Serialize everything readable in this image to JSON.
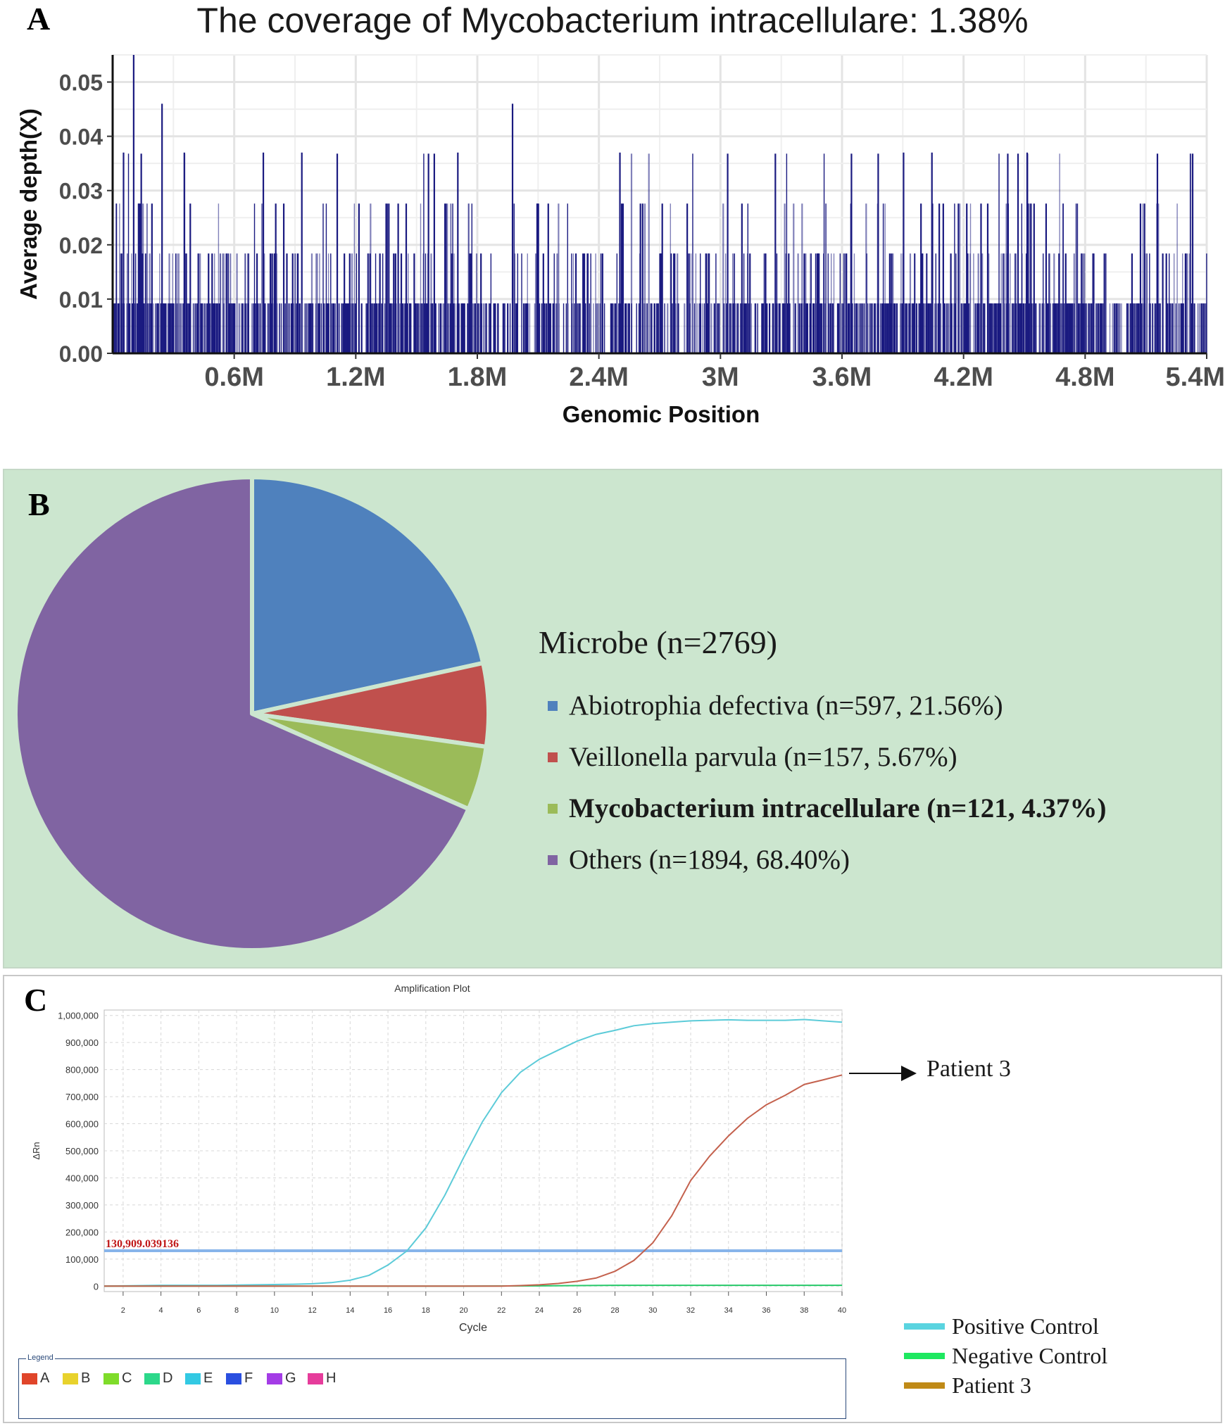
{
  "panels": {
    "a": "A",
    "b": "B",
    "c": "C"
  },
  "chart_data": [
    {
      "type": "bar",
      "title": "The coverage of Mycobacterium intracellulare: 1.38%",
      "xlabel": "Genomic Position",
      "ylabel": "Average depth(X)",
      "xlim": [
        0,
        5400000
      ],
      "ylim": [
        0,
        0.055
      ],
      "x_tick_labels": [
        "0.6M",
        "1.2M",
        "1.8M",
        "2.4M",
        "3M",
        "3.6M",
        "4.2M",
        "4.8M",
        "5.4M"
      ],
      "x_ticks": [
        600000,
        1200000,
        1800000,
        2400000,
        3000000,
        3600000,
        4200000,
        4800000,
        5400000
      ],
      "y_tick_labels": [
        "0.00",
        "0.01",
        "0.02",
        "0.03",
        "0.04",
        "0.05"
      ],
      "y_ticks": [
        0,
        0.01,
        0.02,
        0.03,
        0.04,
        0.05
      ],
      "grid": true,
      "bar_color": "#1a1a80",
      "depth_levels": [
        0.0092,
        0.0184,
        0.0276,
        0.0368,
        0.046,
        0.055
      ],
      "tall_peaks": [
        {
          "x": 100000,
          "y": 0.055
        },
        {
          "x": 240000,
          "y": 0.046
        },
        {
          "x": 930000,
          "y": 0.037
        },
        {
          "x": 1970000,
          "y": 0.046
        },
        {
          "x": 1700000,
          "y": 0.037
        },
        {
          "x": 3900000,
          "y": 0.037
        },
        {
          "x": 4510000,
          "y": 0.037
        },
        {
          "x": 50000,
          "y": 0.037
        },
        {
          "x": 350000,
          "y": 0.037
        },
        {
          "x": 740000,
          "y": 0.037
        },
        {
          "x": 4040000,
          "y": 0.037
        },
        {
          "x": 2500000,
          "y": 0.037
        }
      ],
      "coverage_density": [
        {
          "start": 0,
          "end": 600000,
          "density": 0.55
        },
        {
          "start": 600000,
          "end": 1200000,
          "density": 0.45
        },
        {
          "start": 1200000,
          "end": 1800000,
          "density": 0.5
        },
        {
          "start": 1800000,
          "end": 2400000,
          "density": 0.35
        },
        {
          "start": 2400000,
          "end": 3000000,
          "density": 0.3
        },
        {
          "start": 3000000,
          "end": 3600000,
          "density": 0.45
        },
        {
          "start": 3600000,
          "end": 4200000,
          "density": 0.5
        },
        {
          "start": 4200000,
          "end": 4800000,
          "density": 0.55
        },
        {
          "start": 4800000,
          "end": 5400000,
          "density": 0.45
        }
      ]
    },
    {
      "type": "pie",
      "title": "Microbe (n=2769)",
      "slices": [
        {
          "label": "Abiotrophia defectiva (n=597, 21.56%)",
          "value": 597,
          "percent": 21.56,
          "color": "#4f81bd",
          "bold": false
        },
        {
          "label": "Veillonella parvula (n=157, 5.67%)",
          "value": 157,
          "percent": 5.67,
          "color": "#c0504d",
          "bold": false
        },
        {
          "label": "Mycobacterium intracellulare (n=121, 4.37%)",
          "value": 121,
          "percent": 4.37,
          "color": "#9bbb59",
          "bold": true
        },
        {
          "label": "Others (n=1894, 68.40%)",
          "value": 1894,
          "percent": 68.4,
          "color": "#8064a2",
          "bold": false
        }
      ],
      "start_angle": "12 o'clock, clockwise"
    },
    {
      "type": "line",
      "title": "Amplification Plot",
      "xlabel": "Cycle",
      "ylabel": "ΔRn",
      "xlim": [
        1,
        40
      ],
      "ylim": [
        -20000,
        1020000
      ],
      "x_ticks": [
        2,
        4,
        6,
        8,
        10,
        12,
        14,
        16,
        18,
        20,
        22,
        24,
        26,
        28,
        30,
        32,
        34,
        36,
        38,
        40
      ],
      "y_ticks": [
        0,
        100000,
        200000,
        300000,
        400000,
        500000,
        600000,
        700000,
        800000,
        900000,
        1000000
      ],
      "y_tick_labels": [
        "0",
        "100,000",
        "200,000",
        "300,000",
        "400,000",
        "500,000",
        "600,000",
        "700,000",
        "800,000",
        "900,000",
        "1,000,000"
      ],
      "threshold": {
        "value": 130909.039136,
        "label": "130,909.039136",
        "color": "#87b4ea"
      },
      "series": [
        {
          "name": "Positive Control",
          "color": "#5ccbd8",
          "x": [
            1,
            2,
            3,
            4,
            5,
            6,
            7,
            8,
            9,
            10,
            11,
            12,
            13,
            14,
            15,
            16,
            17,
            18,
            19,
            20,
            21,
            22,
            23,
            24,
            25,
            26,
            27,
            28,
            29,
            30,
            31,
            32,
            33,
            34,
            35,
            36,
            37,
            38,
            39,
            40
          ],
          "values": [
            0,
            1000,
            2000,
            3000,
            3000,
            3000,
            3000,
            4000,
            5000,
            6000,
            7000,
            9000,
            13000,
            22000,
            40000,
            78000,
            130000,
            215000,
            335000,
            475000,
            608000,
            715000,
            790000,
            838000,
            872000,
            905000,
            930000,
            945000,
            962000,
            970000,
            975000,
            980000,
            982000,
            984000,
            982000,
            982000,
            982000,
            985000,
            980000,
            975000
          ]
        },
        {
          "name": "Negative Control",
          "color": "#27c96a",
          "x": [
            1,
            10,
            20,
            24,
            26,
            28,
            30,
            32,
            34,
            36,
            38,
            40
          ],
          "values": [
            0,
            0,
            0,
            1000,
            2000,
            3000,
            3000,
            3000,
            3000,
            3000,
            3000,
            3000
          ]
        },
        {
          "name": "Patient 3",
          "color": "#c4614d",
          "x": [
            1,
            2,
            3,
            4,
            5,
            6,
            7,
            8,
            9,
            10,
            11,
            12,
            13,
            14,
            15,
            16,
            17,
            18,
            19,
            20,
            21,
            22,
            23,
            24,
            25,
            26,
            27,
            28,
            29,
            30,
            31,
            32,
            33,
            34,
            35,
            36,
            37,
            38,
            39,
            40
          ],
          "values": [
            0,
            0,
            0,
            0,
            0,
            0,
            0,
            0,
            0,
            0,
            0,
            0,
            0,
            0,
            0,
            0,
            0,
            0,
            0,
            0,
            0,
            0,
            2000,
            5000,
            10000,
            18000,
            30000,
            55000,
            95000,
            160000,
            260000,
            390000,
            480000,
            555000,
            620000,
            670000,
            705000,
            745000,
            762000,
            780000
          ]
        }
      ],
      "annotation": "Patient 3",
      "legend_right": [
        {
          "label": "Positive Control",
          "color": "#5ad4e0"
        },
        {
          "label": "Negative Control",
          "color": "#1ee860"
        },
        {
          "label": "Patient 3",
          "color": "#c08a17"
        }
      ],
      "well_legend": {
        "title": "Legend",
        "items": [
          {
            "label": "A",
            "color": "#e0452a"
          },
          {
            "label": "B",
            "color": "#e8d22c"
          },
          {
            "label": "C",
            "color": "#7fdc2a"
          },
          {
            "label": "D",
            "color": "#2cd88a"
          },
          {
            "label": "E",
            "color": "#33c9e3"
          },
          {
            "label": "F",
            "color": "#2a4fe0"
          },
          {
            "label": "G",
            "color": "#a43ce6"
          },
          {
            "label": "H",
            "color": "#e63c9b"
          }
        ]
      }
    }
  ]
}
